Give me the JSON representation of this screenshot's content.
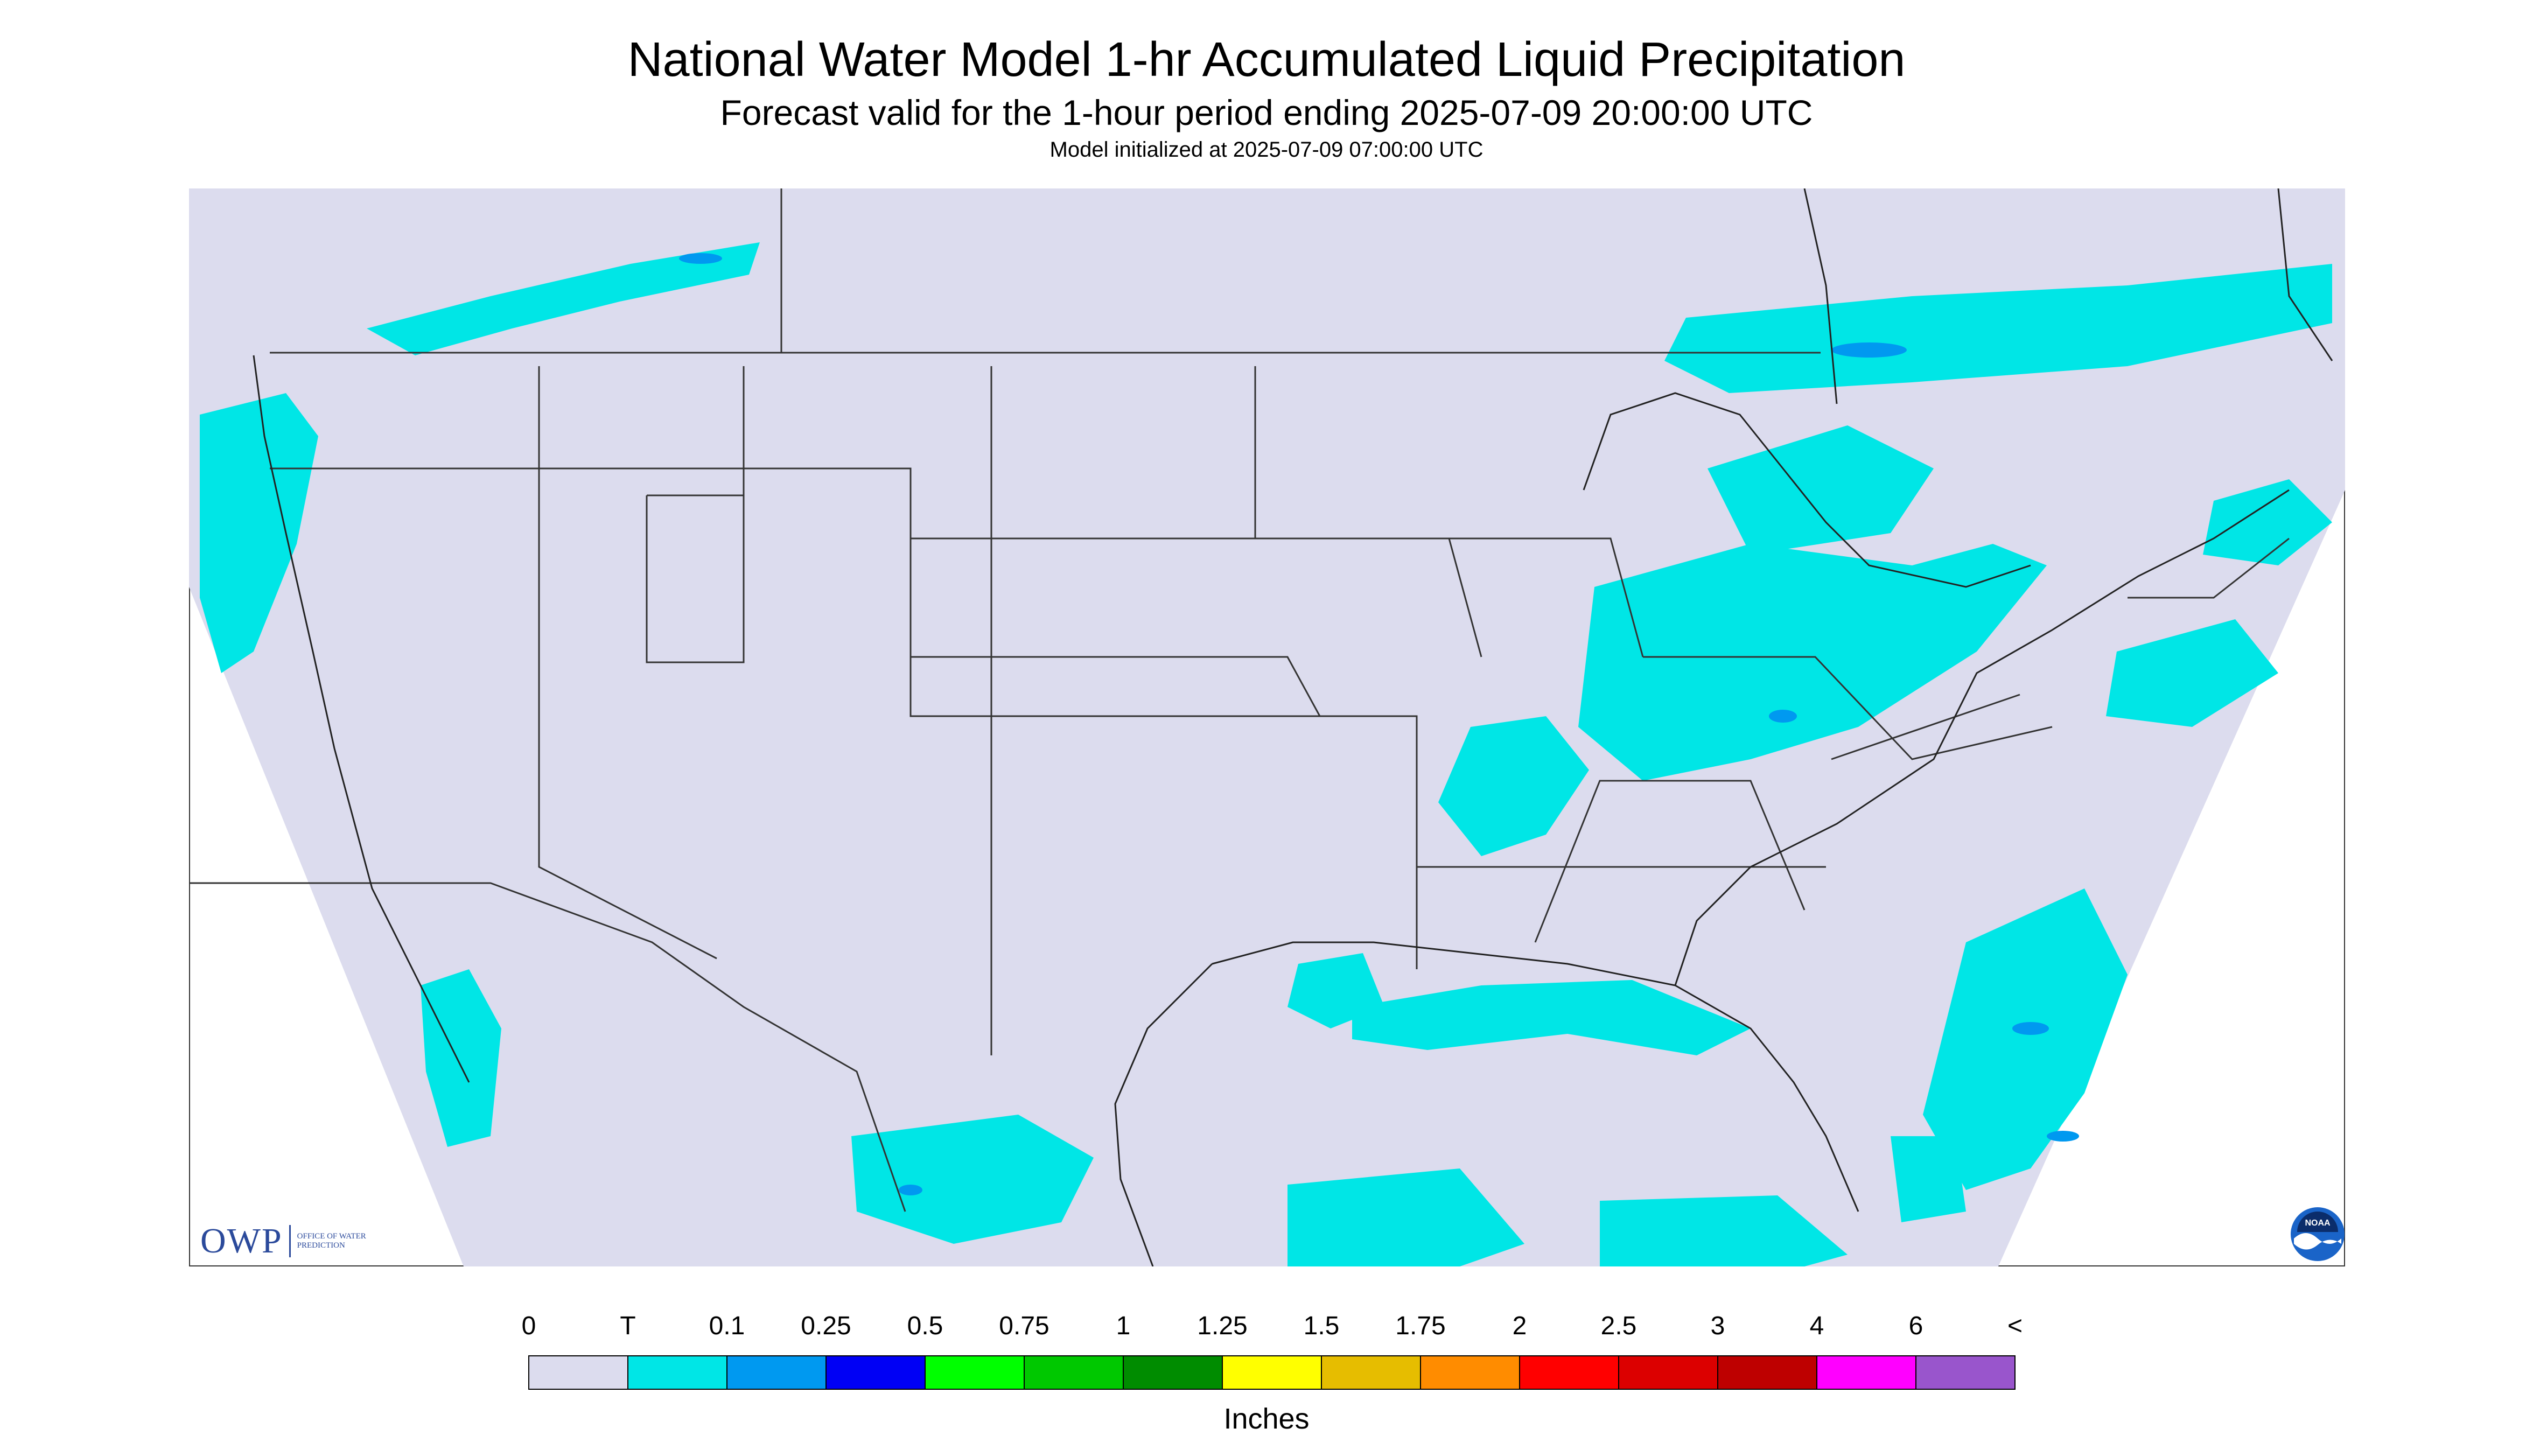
{
  "header": {
    "title": "National Water Model 1-hr Accumulated Liquid Precipitation",
    "subtitle": "Forecast valid for the 1-hour period ending 2025-07-09 20:00:00 UTC",
    "init": "Model initialized at 2025-07-09 07:00:00 UTC"
  },
  "map": {
    "background_color": "#dcdcee",
    "line_color": "#333333"
  },
  "logos": {
    "owp_mark": "OWP",
    "owp_text": "Office of Water Prediction",
    "noaa_text": "NOAA"
  },
  "legend": {
    "units": "Inches",
    "tick_labels": [
      "0",
      "T",
      "0.1",
      "0.25",
      "0.5",
      "0.75",
      "1",
      "1.25",
      "1.5",
      "1.75",
      "2",
      "2.5",
      "3",
      "4",
      "6",
      "<"
    ],
    "colors": [
      "#dcdcee",
      "#00e6e6",
      "#0099f0",
      "#0000f5",
      "#00ff00",
      "#00c800",
      "#008c00",
      "#ffff00",
      "#e6bd00",
      "#ff8c00",
      "#ff0000",
      "#dc0000",
      "#be0000",
      "#ff00ff",
      "#9955cc"
    ]
  }
}
